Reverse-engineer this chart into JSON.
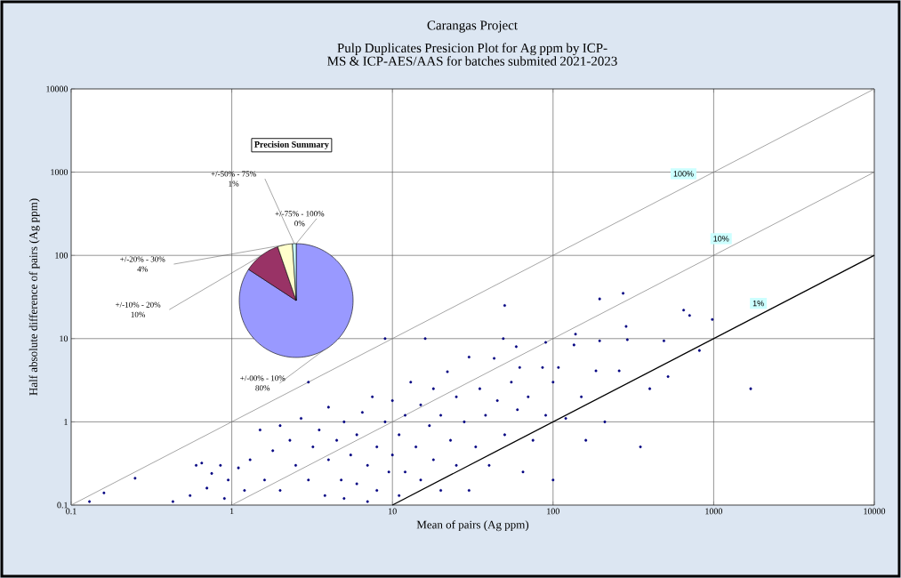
{
  "chart_data": [
    {
      "type": "scatter",
      "title": "Carangas Project",
      "subtitle": "Pulp Duplicates Presicion Plot for Ag ppm by ICP- MS & ICP-AES/AAS for batches submited 2021-2023",
      "xlabel": "Mean of pairs (Ag ppm)",
      "ylabel": "Half absolute difference of pairs (Ag ppm)",
      "log": "xy",
      "xlim": [
        0.1,
        10000
      ],
      "ylim": [
        0.1,
        10000
      ],
      "xticks": [
        0.1,
        1,
        10,
        100,
        1000,
        10000
      ],
      "yticks": [
        0.1,
        1,
        10,
        100,
        1000,
        10000
      ],
      "grid": true,
      "series": [
        {
          "type": "scatter",
          "marker": "circle",
          "color": "#000080",
          "x": [
            0.13,
            0.16,
            0.25,
            0.43,
            0.55,
            0.6,
            0.65,
            0.7,
            0.75,
            0.85,
            0.9,
            0.95,
            1.1,
            1.2,
            1.3,
            1.5,
            1.6,
            1.8,
            2,
            2,
            2.3,
            2.5,
            2.7,
            3,
            3,
            3.2,
            3.5,
            3.8,
            4,
            4,
            4.5,
            4.8,
            5,
            5,
            5.5,
            6,
            6,
            6.5,
            7,
            7,
            7.5,
            8,
            8,
            9,
            9,
            9.5,
            10,
            10,
            11,
            11,
            12,
            12,
            13,
            14,
            15,
            15,
            16,
            17,
            18,
            18,
            20,
            20,
            22,
            23,
            25,
            25,
            28,
            30,
            30,
            33,
            35,
            38,
            40,
            43,
            45,
            50,
            49,
            50,
            55,
            59,
            60,
            62,
            65,
            70,
            75,
            86,
            90,
            90,
            100,
            100,
            108,
            120,
            135,
            138,
            150,
            160,
            185,
            195,
            195,
            210,
            258,
            273,
            285,
            290,
            350,
            400,
            490,
            520,
            650,
            708,
            815,
            980,
            1700
          ],
          "values": [
            0.11,
            0.14,
            0.21,
            0.11,
            0.13,
            0.3,
            0.32,
            0.16,
            0.24,
            0.3,
            0.12,
            0.2,
            0.28,
            0.15,
            0.35,
            0.8,
            0.2,
            0.45,
            0.9,
            0.15,
            0.6,
            0.3,
            1.1,
            3,
            0.2,
            0.5,
            0.8,
            0.13,
            1.5,
            0.35,
            0.6,
            0.2,
            1,
            0.12,
            0.4,
            0.7,
            0.18,
            1.3,
            0.3,
            0.11,
            2,
            0.5,
            0.15,
            10,
            1,
            0.25,
            1.8,
            0.4,
            0.7,
            0.13,
            1.2,
            0.25,
            3,
            0.5,
            1.6,
            0.2,
            10,
            0.9,
            2.5,
            0.35,
            1.2,
            0.15,
            4,
            0.6,
            2,
            0.3,
            1,
            6,
            0.15,
            0.5,
            2.5,
            1.2,
            0.3,
            5.8,
            1.8,
            25,
            10,
            0.7,
            3,
            8,
            1.4,
            4.5,
            0.25,
            2,
            0.6,
            4.5,
            9,
            1.2,
            3,
            0.2,
            4.5,
            1.1,
            8.4,
            11.3,
            2,
            0.6,
            4.1,
            9.4,
            30,
            1,
            4.1,
            35,
            14,
            9.7,
            0.5,
            2.5,
            9.4,
            3.5,
            22,
            19,
            7.2,
            17,
            2.5
          ]
        },
        {
          "type": "line",
          "marker": "none",
          "name": "100%",
          "color": "#808080",
          "x": [
            0.1,
            10000
          ],
          "values": [
            0.1,
            10000
          ]
        },
        {
          "type": "line",
          "marker": "none",
          "name": "10%",
          "color": "#808080",
          "x": [
            1,
            10000
          ],
          "values": [
            0.1,
            1000
          ]
        },
        {
          "type": "line",
          "marker": "none",
          "name": "1%",
          "color": "#000000",
          "x": [
            10,
            10000
          ],
          "values": [
            0.1,
            100
          ]
        }
      ]
    },
    {
      "type": "pie",
      "title": "Precision Summary",
      "categories": [
        "+/-00% - 10%",
        "+/-10% - 20%",
        "+/-20% - 30%",
        "+/-50% - 75%",
        "+/-75% - 100%"
      ],
      "values": [
        80,
        10,
        4,
        1,
        0
      ],
      "value_labels": [
        "80%",
        "10%",
        "4%",
        "1%",
        "0%"
      ],
      "colors": [
        "#9999ff",
        "#993366",
        "#ffffcc",
        "#ccffff",
        "#000080"
      ]
    }
  ]
}
